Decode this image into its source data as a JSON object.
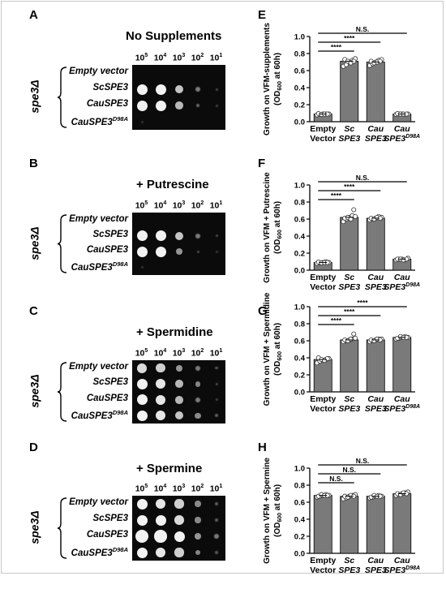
{
  "figure_panels": [
    {
      "letter": "A",
      "condition": "No Supplements"
    },
    {
      "letter": "B",
      "condition": "+ Putrescine"
    },
    {
      "letter": "C",
      "condition": "+ Spermidine"
    },
    {
      "letter": "D",
      "condition": "+ Spermine"
    }
  ],
  "dilutions": [
    "5",
    "4",
    "3",
    "2",
    "1"
  ],
  "dilution_base": "10",
  "genotype": "spe3Δ",
  "strains": [
    {
      "label": "Empty vector",
      "sup": ""
    },
    {
      "label": "ScSPE3",
      "sup": ""
    },
    {
      "label": "CauSPE3",
      "sup": ""
    },
    {
      "label": "CauSPE3",
      "sup": "D98A"
    }
  ],
  "chart_data": [
    {
      "panel": "E",
      "type": "bar",
      "categories": [
        [
          "Empty",
          "Vector",
          ""
        ],
        [
          "Sc",
          "SPE3",
          ""
        ],
        [
          "Cau",
          "SPE3",
          ""
        ],
        [
          "Cau",
          "SPE3",
          "D98A"
        ]
      ],
      "values": [
        0.09,
        0.71,
        0.7,
        0.09
      ],
      "points": [
        [
          0.08,
          0.085,
          0.09,
          0.09,
          0.09,
          0.095,
          0.085,
          0.09,
          0.09
        ],
        [
          0.65,
          0.67,
          0.7,
          0.72,
          0.74,
          0.73,
          0.71,
          0.69,
          0.71
        ],
        [
          0.66,
          0.68,
          0.7,
          0.72,
          0.73,
          0.71,
          0.69,
          0.7,
          0.71
        ],
        [
          0.085,
          0.09,
          0.09,
          0.085,
          0.09,
          0.095,
          0.09,
          0.09,
          0.09
        ]
      ],
      "ylabel": "Growth on VFM-supplements",
      "ylabel2": "(OD",
      "ylabel2_sub": "600",
      "ylabel2_end": " at 60h)",
      "ylim": [
        0,
        1.0
      ],
      "yticks": [
        "0.0",
        "0.2",
        "0.4",
        "0.6",
        "0.8",
        "1.0"
      ],
      "comparisons": [
        {
          "from": 0,
          "to": 1,
          "label": "****"
        },
        {
          "from": 0,
          "to": 2,
          "label": "****"
        },
        {
          "from": 0,
          "to": 3,
          "label": "N.S."
        }
      ]
    },
    {
      "panel": "F",
      "type": "bar",
      "categories": [
        [
          "Empty",
          "Vector",
          ""
        ],
        [
          "Sc",
          "SPE3",
          ""
        ],
        [
          "Cau",
          "SPE3",
          ""
        ],
        [
          "Cau",
          "SPE3",
          "D98A"
        ]
      ],
      "values": [
        0.09,
        0.62,
        0.61,
        0.13
      ],
      "points": [
        [
          0.08,
          0.085,
          0.09,
          0.1,
          0.09,
          0.095,
          0.085,
          0.09,
          0.09
        ],
        [
          0.57,
          0.6,
          0.62,
          0.64,
          0.63,
          0.61,
          0.62,
          0.6,
          0.71
        ],
        [
          0.59,
          0.6,
          0.61,
          0.63,
          0.62,
          0.61,
          0.6,
          0.62,
          0.61
        ],
        [
          0.12,
          0.13,
          0.13,
          0.12,
          0.14,
          0.13,
          0.13,
          0.12,
          0.13
        ]
      ],
      "ylabel": "Growth on VFM + Putrescine",
      "ylabel2": "(OD",
      "ylabel2_sub": "600",
      "ylabel2_end": " at 60h)",
      "ylim": [
        0,
        1.0
      ],
      "yticks": [
        "0.0",
        "0.2",
        "0.4",
        "0.6",
        "0.8",
        "1.0"
      ],
      "comparisons": [
        {
          "from": 0,
          "to": 1,
          "label": "****"
        },
        {
          "from": 0,
          "to": 2,
          "label": "****"
        },
        {
          "from": 0,
          "to": 3,
          "label": "N.S."
        }
      ]
    },
    {
      "panel": "G",
      "type": "bar",
      "categories": [
        [
          "Empty",
          "Vector",
          ""
        ],
        [
          "Sc",
          "SPE3",
          ""
        ],
        [
          "Cau",
          "SPE3",
          ""
        ],
        [
          "Cau",
          "SPE3",
          "D98A"
        ]
      ],
      "values": [
        0.38,
        0.61,
        0.61,
        0.64
      ],
      "points": [
        [
          0.34,
          0.36,
          0.37,
          0.38,
          0.39,
          0.4,
          0.38,
          0.37,
          0.39
        ],
        [
          0.59,
          0.6,
          0.61,
          0.62,
          0.63,
          0.61,
          0.6,
          0.62,
          0.68
        ],
        [
          0.59,
          0.6,
          0.61,
          0.62,
          0.62,
          0.61,
          0.6,
          0.62,
          0.61
        ],
        [
          0.62,
          0.63,
          0.64,
          0.65,
          0.64,
          0.63,
          0.65,
          0.64,
          0.64
        ]
      ],
      "ylabel": "Growth on VFM + Spermidine",
      "ylabel2": "(OD",
      "ylabel2_sub": "600",
      "ylabel2_end": " at 60h)",
      "ylim": [
        0,
        1.0
      ],
      "yticks": [
        "0.0",
        "0.2",
        "0.4",
        "0.6",
        "0.8",
        "1.0"
      ],
      "comparisons": [
        {
          "from": 0,
          "to": 1,
          "label": "****"
        },
        {
          "from": 0,
          "to": 2,
          "label": "****"
        },
        {
          "from": 0,
          "to": 3,
          "label": "****"
        }
      ]
    },
    {
      "panel": "H",
      "type": "bar",
      "categories": [
        [
          "Empty",
          "Vector",
          ""
        ],
        [
          "Sc",
          "SPE3",
          ""
        ],
        [
          "Cau",
          "SPE3",
          ""
        ],
        [
          "Cau",
          "SPE3",
          "D98A"
        ]
      ],
      "values": [
        0.68,
        0.67,
        0.67,
        0.7
      ],
      "points": [
        [
          0.66,
          0.67,
          0.68,
          0.69,
          0.68,
          0.67,
          0.69,
          0.68,
          0.68
        ],
        [
          0.64,
          0.65,
          0.67,
          0.68,
          0.69,
          0.67,
          0.66,
          0.68,
          0.67
        ],
        [
          0.65,
          0.66,
          0.67,
          0.68,
          0.67,
          0.66,
          0.68,
          0.67,
          0.67
        ],
        [
          0.68,
          0.69,
          0.7,
          0.71,
          0.72,
          0.7,
          0.69,
          0.71,
          0.7
        ]
      ],
      "ylabel": "Growth on VFM + Spermine",
      "ylabel2": "(OD",
      "ylabel2_sub": "600",
      "ylabel2_end": " at 60h)",
      "ylim": [
        0,
        1.0
      ],
      "yticks": [
        "0.0",
        "0.2",
        "0.4",
        "0.6",
        "0.8",
        "1.0"
      ],
      "comparisons": [
        {
          "from": 0,
          "to": 1,
          "label": "N.S."
        },
        {
          "from": 0,
          "to": 2,
          "label": "N.S."
        },
        {
          "from": 0,
          "to": 3,
          "label": "N.S."
        }
      ]
    }
  ],
  "colors": {
    "bar": "#7a7a7a",
    "point_fill": "#ffffff",
    "plate": "#0b0b0b",
    "colony": "#f2f2f2"
  }
}
